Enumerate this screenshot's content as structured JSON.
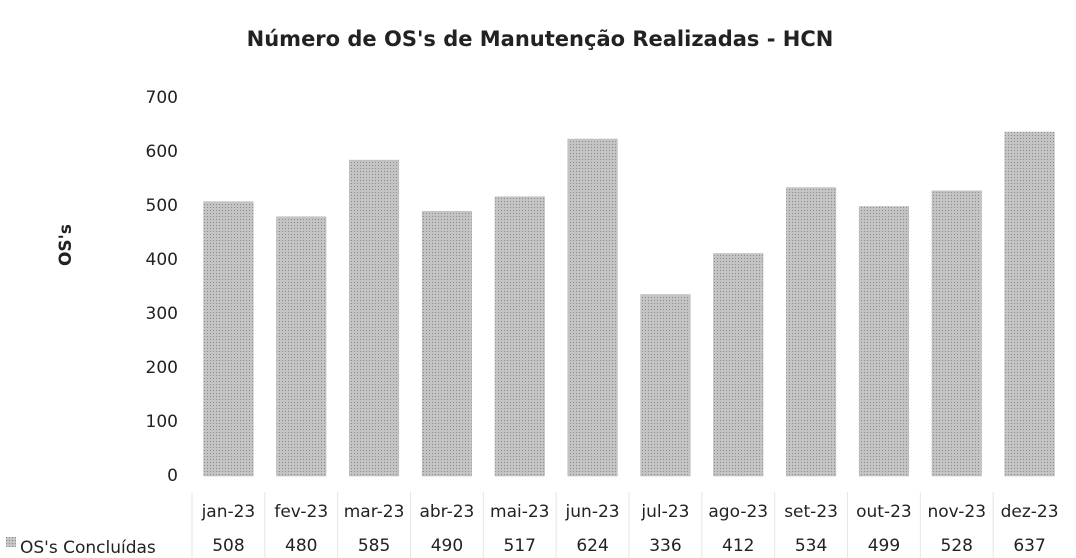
{
  "chart_data": {
    "type": "bar",
    "title": "Número de OS's de Manutenção Realizadas - HCN",
    "ylabel": "OS's",
    "categories": [
      "jan-23",
      "fev-23",
      "mar-23",
      "abr-23",
      "mai-23",
      "jun-23",
      "jul-23",
      "ago-23",
      "set-23",
      "out-23",
      "nov-23",
      "dez-23"
    ],
    "series": [
      {
        "name": "OS's Concluídas",
        "color": "#b3b3b3",
        "values": [
          508,
          480,
          585,
          490,
          517,
          624,
          336,
          412,
          534,
          499,
          528,
          637
        ]
      }
    ],
    "ylim": [
      0,
      700
    ],
    "yticks": [
      0,
      100,
      200,
      300,
      400,
      500,
      600,
      700
    ],
    "grid": false
  }
}
